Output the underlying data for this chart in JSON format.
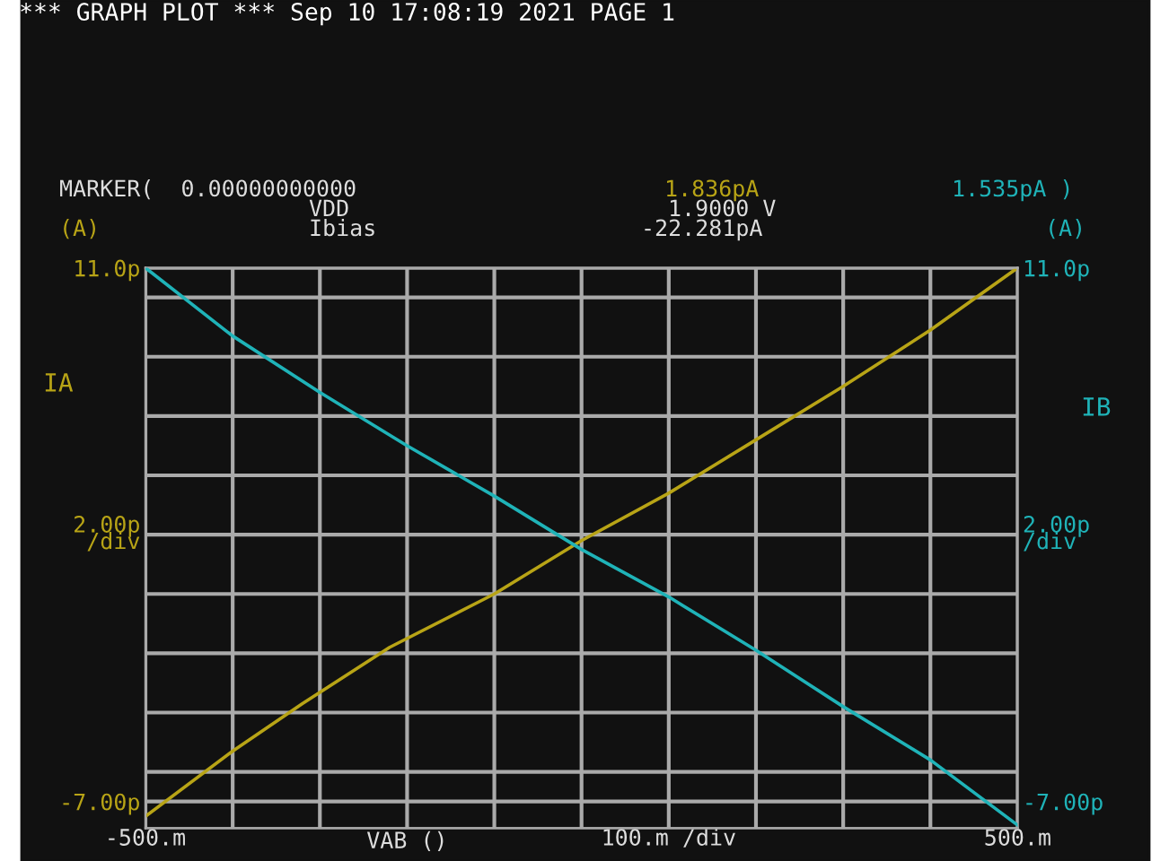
{
  "chart_data": {
    "type": "line",
    "title": "*** GRAPH PLOT *** Sep 10 17:08:19 2021 PAGE 1",
    "xlabel": "VAB ()",
    "ylabel": "IA",
    "y2label": "IB",
    "x": [
      -500,
      -400,
      -320,
      -220,
      -100,
      0,
      100,
      200,
      300,
      400,
      500
    ],
    "series": [
      {
        "color": "#b8a416",
        "values": [
          -7.5,
          -5.3,
          -3.7,
          -1.8,
          0.0,
          1.8,
          3.4,
          5.2,
          7.0,
          8.9,
          11.0
        ]
      },
      {
        "color": "#1fb3b8",
        "axis": "y2",
        "x": [
          -500,
          -400,
          -300,
          -200,
          -100,
          0,
          100,
          200,
          300,
          400,
          500
        ],
        "values": [
          11.0,
          8.7,
          6.8,
          5.0,
          3.3,
          1.5,
          -0.1,
          -1.9,
          -3.8,
          -5.6,
          -7.8
        ]
      }
    ],
    "xlim": [
      -500,
      500
    ],
    "xticks": [
      {
        "value": -500,
        "label": "-500.m"
      },
      {
        "value": -400,
        "label": null
      },
      {
        "value": -300,
        "label": null
      },
      {
        "value": -200,
        "label": null
      },
      {
        "value": -100,
        "label": null
      },
      {
        "value": 0,
        "label": null
      },
      {
        "value": 100,
        "label": "100.m /div"
      },
      {
        "value": 200,
        "label": null
      },
      {
        "value": 300,
        "label": null
      },
      {
        "value": 400,
        "label": null
      },
      {
        "value": 500,
        "label": "500.m"
      }
    ],
    "ylim": [
      -7.9,
      11
    ],
    "yticks": [
      {
        "value": -7,
        "label": "-7.00p"
      },
      {
        "value": -6,
        "label": null
      },
      {
        "value": -4,
        "label": null
      },
      {
        "value": -2,
        "label": null
      },
      {
        "value": 0,
        "label": null
      },
      {
        "value": 2,
        "label": "2.00p\n/div"
      },
      {
        "value": 4,
        "label": null
      },
      {
        "value": 6,
        "label": null
      },
      {
        "value": 8,
        "label": null
      },
      {
        "value": 10,
        "label": null
      },
      {
        "value": 11,
        "label": "11.0p"
      }
    ],
    "y2lim": [
      -7.9,
      11
    ],
    "y2ticks": [
      {
        "value": -7,
        "label": "-7.00p"
      },
      {
        "value": 2,
        "label": "2.00p\n/div"
      },
      {
        "value": 11,
        "label": "11.0p"
      }
    ],
    "grid": true,
    "legend": false,
    "annotations": [
      "MARKER(  0.00000000000",
      "1.836pA",
      "1.535pA )",
      "VDD",
      "1.9000 V",
      "Ibias",
      "-22.281pA",
      "(A)",
      "(A)"
    ]
  }
}
